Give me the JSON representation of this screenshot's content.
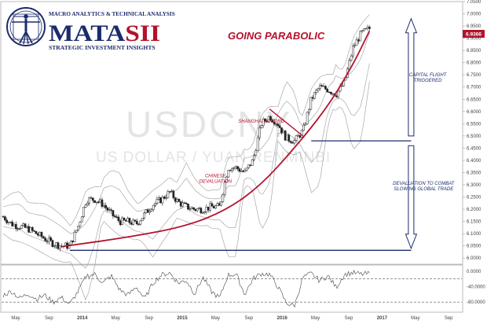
{
  "logo": {
    "top_line": "MACRO ANALYTICS & TECHNICAL ANALYSIS",
    "wordmark_left": "MATA",
    "wordmark_right": "SII",
    "bottom_line": "STRATEGIC INVESTMENT INSIGHTS"
  },
  "colors": {
    "navy": "#1c2b6b",
    "red": "#b3122c",
    "candle_up": "#ffffff",
    "candle_down": "#222222",
    "bands": "#9a9a9a",
    "watermark": "#e2e2e2"
  },
  "chart_data": {
    "type": "candlestick",
    "title": "GOING PARABOLIC",
    "watermark_symbol": "USDCNY",
    "watermark_name": "US DOLLAR / YUAN RENMINBI",
    "last_value_label": "6.9366",
    "last_value": 6.9366,
    "y_axis": {
      "ylim": [
        5.975,
        7.05
      ],
      "ticks": [
        "5.9500",
        "6.0000",
        "6.0500",
        "6.1000",
        "6.1500",
        "6.2000",
        "6.2500",
        "6.3000",
        "6.3500",
        "6.4000",
        "6.4500",
        "6.5000",
        "6.5500",
        "6.6000",
        "6.6500",
        "6.7000",
        "6.7500",
        "6.8000",
        "6.8500",
        "6.9000",
        "6.9500",
        "7.0000",
        "7.0500"
      ]
    },
    "x_axis": {
      "labels": [
        "May",
        "Sep",
        "2014",
        "May",
        "Sep",
        "2015",
        "May",
        "Sep",
        "2016",
        "May",
        "Sep",
        "2017",
        "May",
        "Sep"
      ],
      "positions": [
        0,
        4,
        8,
        12,
        16,
        20,
        24,
        28,
        32,
        36,
        40,
        44,
        48,
        52
      ]
    },
    "price_anchors": [
      [
        0,
        6.17
      ],
      [
        1,
        6.14
      ],
      [
        2,
        6.13
      ],
      [
        3,
        6.12
      ],
      [
        4,
        6.1
      ],
      [
        5,
        6.08
      ],
      [
        6,
        6.06
      ],
      [
        7,
        6.05
      ],
      [
        8,
        6.05
      ],
      [
        9,
        6.13
      ],
      [
        10,
        6.24
      ],
      [
        11,
        6.24
      ],
      [
        12,
        6.22
      ],
      [
        13,
        6.18
      ],
      [
        14,
        6.15
      ],
      [
        15,
        6.15
      ],
      [
        16,
        6.14
      ],
      [
        17,
        6.18
      ],
      [
        18,
        6.22
      ],
      [
        19,
        6.24
      ],
      [
        20,
        6.27
      ],
      [
        21,
        6.23
      ],
      [
        22,
        6.21
      ],
      [
        23,
        6.2
      ],
      [
        24,
        6.2
      ],
      [
        25,
        6.21
      ],
      [
        26,
        6.21
      ],
      [
        27,
        6.37
      ],
      [
        28,
        6.37
      ],
      [
        29,
        6.35
      ],
      [
        30,
        6.4
      ],
      [
        31,
        6.55
      ],
      [
        32,
        6.58
      ],
      [
        33,
        6.55
      ],
      [
        34,
        6.49
      ],
      [
        35,
        6.48
      ],
      [
        36,
        6.52
      ],
      [
        37,
        6.65
      ],
      [
        38,
        6.7
      ],
      [
        39,
        6.69
      ],
      [
        40,
        6.67
      ],
      [
        41,
        6.72
      ],
      [
        42,
        6.86
      ],
      [
        43,
        6.92
      ],
      [
        44,
        6.94
      ]
    ],
    "series": [
      {
        "kind": "candles",
        "x_range": [
          0,
          44
        ]
      },
      {
        "kind": "envelope_bands"
      },
      {
        "kind": "parabolic_curve",
        "points": [
          [
            7,
            6.047
          ],
          [
            15,
            6.085
          ],
          [
            22,
            6.13
          ],
          [
            27,
            6.2
          ],
          [
            31,
            6.3
          ],
          [
            35,
            6.45
          ],
          [
            39,
            6.62
          ],
          [
            42,
            6.79
          ],
          [
            44,
            6.93
          ]
        ]
      },
      {
        "kind": "downtrend_line",
        "points": [
          [
            32,
            6.61
          ],
          [
            36,
            6.5
          ]
        ]
      }
    ],
    "horizontal_lines": [
      {
        "y": 6.032,
        "x_range": [
          8,
          49
        ]
      },
      {
        "y": 6.48,
        "x_range": [
          37,
          49
        ]
      }
    ],
    "annotations": [
      {
        "text_lines": [
          "SHANGHAI ACCORD"
        ],
        "x": 31,
        "y": 6.555,
        "color": "red"
      },
      {
        "text_lines": [
          "CHINESE",
          "DEVALUATION"
        ],
        "x": 25.5,
        "y": 6.33,
        "color": "red"
      },
      {
        "text_lines": [
          "CAPITAL FLIGHT",
          "TRIGGERED"
        ],
        "x": 51,
        "y": 6.745,
        "color": "navy"
      },
      {
        "text_lines": [
          "DEVALUATION TO COMBAT",
          "SLOWING GLOBAL TRADE"
        ],
        "x": 50.5,
        "y": 6.3,
        "color": "navy"
      }
    ],
    "arrows": [
      {
        "x": 49,
        "from": 6.5,
        "to": 6.98
      },
      {
        "x": 49,
        "from": 6.46,
        "to": 6.04
      }
    ],
    "oscillator": {
      "ticks": [
        "0.0000",
        "-40.0000",
        "-80.0000"
      ],
      "ylim": [
        -100,
        10
      ],
      "dashed_levels": [
        -20,
        -80
      ],
      "anchors": [
        [
          0,
          -62
        ],
        [
          1,
          -52
        ],
        [
          2,
          -70
        ],
        [
          3,
          -58
        ],
        [
          4,
          -72
        ],
        [
          5,
          -62
        ],
        [
          6,
          -80
        ],
        [
          7,
          -68
        ],
        [
          8,
          -86
        ],
        [
          9,
          -52
        ],
        [
          10,
          -12
        ],
        [
          11,
          -8
        ],
        [
          12,
          -30
        ],
        [
          13,
          -12
        ],
        [
          14,
          -48
        ],
        [
          15,
          -62
        ],
        [
          16,
          -40
        ],
        [
          17,
          -72
        ],
        [
          18,
          -30
        ],
        [
          19,
          -10
        ],
        [
          20,
          -4
        ],
        [
          21,
          -30
        ],
        [
          22,
          -24
        ],
        [
          23,
          -58
        ],
        [
          24,
          -16
        ],
        [
          25,
          -52
        ],
        [
          26,
          -70
        ],
        [
          27,
          -10
        ],
        [
          28,
          -8
        ],
        [
          29,
          -60
        ],
        [
          30,
          -20
        ],
        [
          31,
          -6
        ],
        [
          32,
          -8
        ],
        [
          33,
          -40
        ],
        [
          34,
          -82
        ],
        [
          35,
          -90
        ],
        [
          36,
          -16
        ],
        [
          37,
          -6
        ],
        [
          38,
          -24
        ],
        [
          39,
          -12
        ],
        [
          40,
          -42
        ],
        [
          41,
          -8
        ],
        [
          42,
          -4
        ],
        [
          43,
          -8
        ],
        [
          44,
          -6
        ]
      ]
    }
  }
}
